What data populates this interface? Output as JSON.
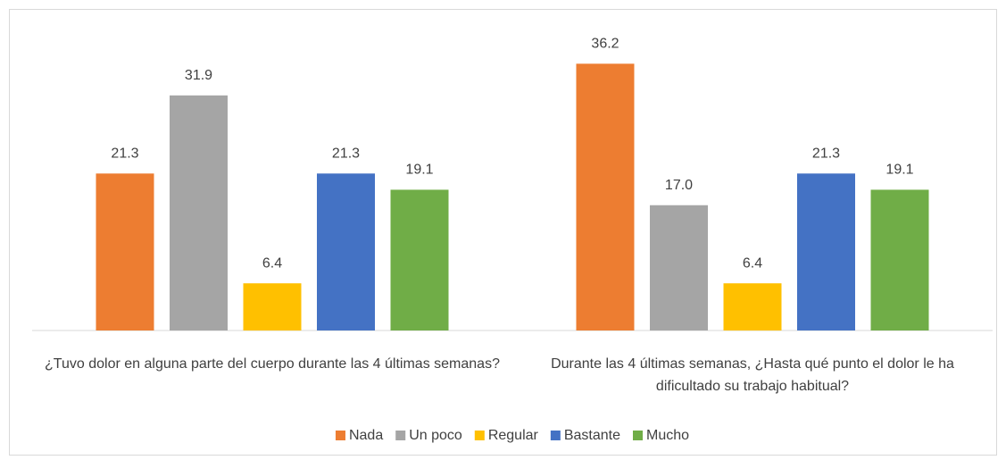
{
  "chart_data": {
    "type": "bar",
    "categories": [
      "¿Tuvo dolor en alguna parte del cuerpo durante las 4 últimas semanas?",
      "Durante las 4 últimas semanas, ¿Hasta qué punto el dolor le ha dificultado su trabajo habitual?"
    ],
    "series": [
      {
        "name": "Nada",
        "color": "#ed7d31",
        "values": [
          21.3,
          36.2
        ],
        "value_labels": [
          "21.3",
          "36.2"
        ]
      },
      {
        "name": "Un poco",
        "color": "#a5a5a5",
        "values": [
          31.9,
          17
        ],
        "value_labels": [
          "31.9",
          "17.0"
        ]
      },
      {
        "name": "Regular",
        "color": "#ffc000",
        "values": [
          6.4,
          6.4
        ],
        "value_labels": [
          "6.4",
          "6.4"
        ]
      },
      {
        "name": "Bastante",
        "color": "#4472c4",
        "values": [
          21.3,
          21.3
        ],
        "value_labels": [
          "21.3",
          "21.3"
        ]
      },
      {
        "name": "Mucho",
        "color": "#70ad47",
        "values": [
          19.1,
          19.1
        ],
        "value_labels": [
          "19.1",
          "19.1"
        ]
      }
    ],
    "ylim": [
      0,
      40
    ],
    "legend": "bottom"
  }
}
